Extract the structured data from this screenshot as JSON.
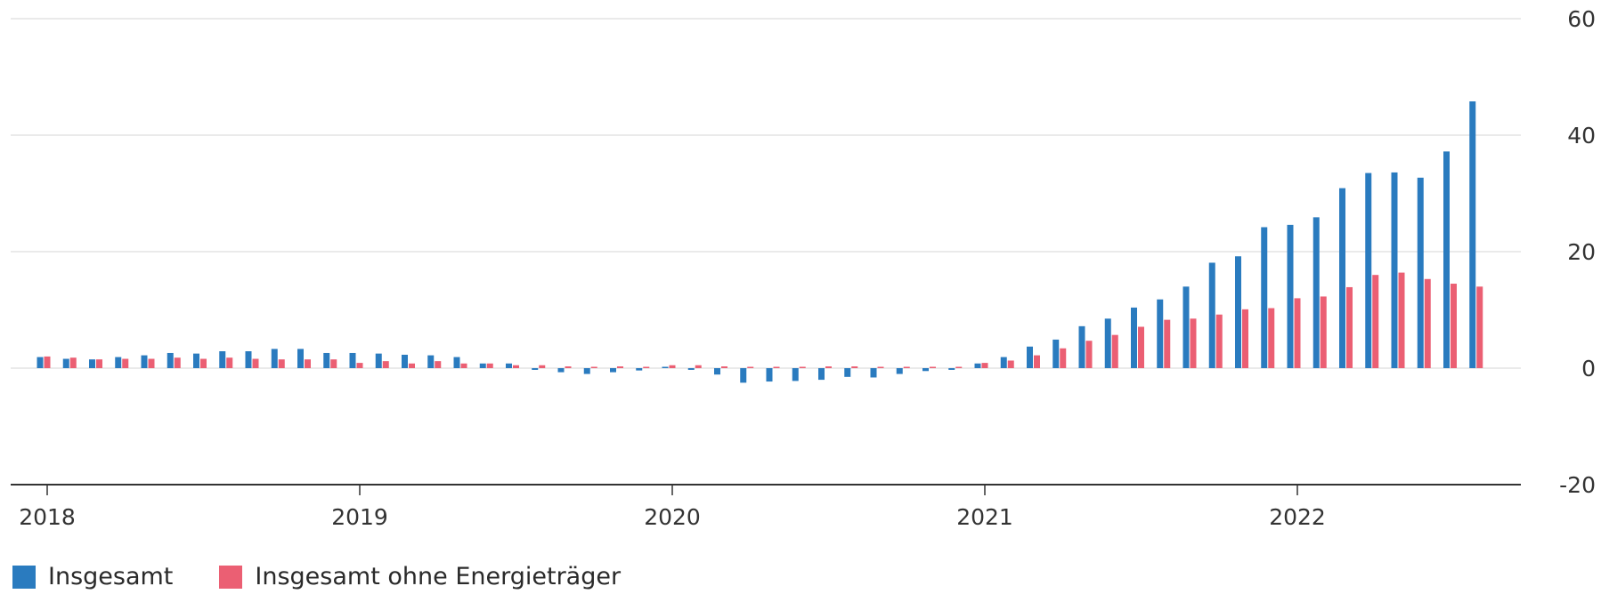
{
  "chart_data": {
    "type": "bar",
    "x_tick_labels": [
      "2018",
      "2019",
      "2020",
      "2021",
      "2022"
    ],
    "y_tick_labels": [
      "60",
      "40",
      "20",
      "0",
      "-20"
    ],
    "ylim": [
      -20,
      60
    ],
    "y_ticks": [
      60,
      40,
      20,
      0,
      -20
    ],
    "grid": true,
    "y_axis_position": "right",
    "legend_position": "bottom-left",
    "series": [
      {
        "name": "Insgesamt",
        "color": "#2a7bbf",
        "values": [
          1.9,
          1.6,
          1.5,
          1.9,
          2.2,
          2.6,
          2.5,
          2.9,
          2.9,
          3.3,
          3.3,
          2.6,
          2.6,
          2.5,
          2.3,
          2.2,
          1.9,
          0.8,
          0.8,
          -0.3,
          -0.7,
          -1.0,
          -0.7,
          -0.4,
          0.0,
          -0.3,
          -1.1,
          -2.5,
          -2.3,
          -2.2,
          -2.0,
          -1.5,
          -1.6,
          -1.0,
          -0.5,
          -0.3,
          0.8,
          1.9,
          3.7,
          4.9,
          7.2,
          8.5,
          10.4,
          11.8,
          14.0,
          18.1,
          19.2,
          24.2,
          24.6,
          25.9,
          30.9,
          33.5,
          33.6,
          32.7,
          37.2,
          45.8
        ]
      },
      {
        "name": "Insgesamt ohne Energieträger",
        "color": "#eb5f73",
        "values": [
          2.0,
          1.8,
          1.5,
          1.6,
          1.6,
          1.8,
          1.6,
          1.8,
          1.6,
          1.5,
          1.5,
          1.5,
          0.9,
          1.2,
          0.8,
          1.2,
          0.8,
          0.8,
          0.5,
          0.5,
          0.3,
          0.2,
          0.3,
          0.1,
          0.5,
          0.5,
          0.3,
          0.1,
          0.1,
          0.2,
          0.3,
          0.3,
          0.2,
          0.2,
          0.2,
          0.2,
          0.9,
          1.3,
          2.2,
          3.4,
          4.7,
          5.7,
          7.1,
          8.3,
          8.5,
          9.2,
          10.1,
          10.3,
          12.0,
          12.3,
          13.9,
          16.0,
          16.4,
          15.3,
          14.5,
          14.0
        ]
      }
    ]
  }
}
